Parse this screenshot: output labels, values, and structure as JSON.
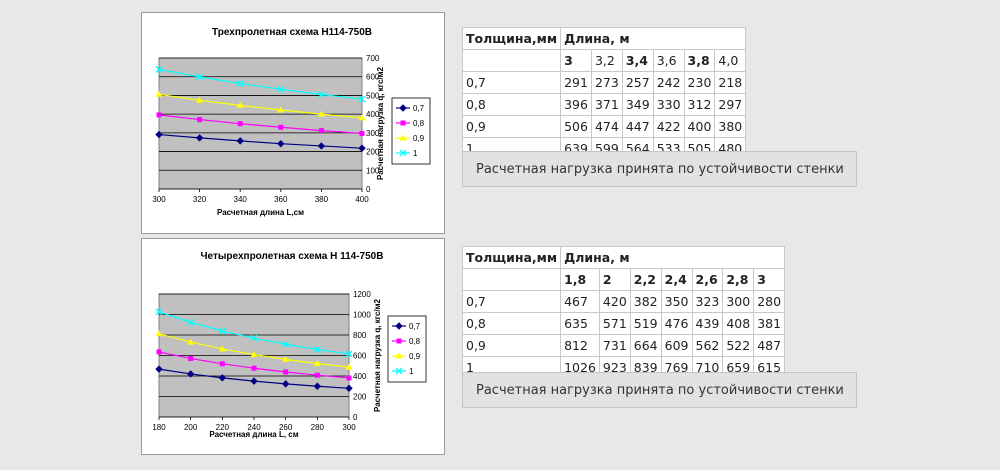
{
  "chart_data": [
    {
      "type": "line",
      "title": "Трехпролетная схема Н114-750В",
      "xlabel": "Расчетная длина L,см",
      "ylabel": "Расчетная нагрузка q, кгс/м2",
      "x": [
        300,
        320,
        340,
        360,
        380,
        400
      ],
      "x_ticks": [
        "300",
        "320",
        "340",
        "360",
        "380",
        "400"
      ],
      "y_ticks": [
        "0",
        "100",
        "200",
        "300",
        "400",
        "500",
        "600",
        "700"
      ],
      "xlim": [
        300,
        400
      ],
      "ylim": [
        0,
        700
      ],
      "y_axis_side": "right",
      "grid": true,
      "legend_position": "right",
      "series": [
        {
          "name": "0,7",
          "values": [
            291,
            273,
            257,
            242,
            230,
            218
          ],
          "color": "#000080",
          "marker": "diamond"
        },
        {
          "name": "0,8",
          "values": [
            396,
            371,
            349,
            330,
            312,
            297
          ],
          "color": "#ff00ff",
          "marker": "square"
        },
        {
          "name": "0,9",
          "values": [
            506,
            474,
            447,
            422,
            400,
            380
          ],
          "color": "#ffff00",
          "marker": "triangle"
        },
        {
          "name": "1",
          "values": [
            639,
            599,
            564,
            533,
            505,
            480
          ],
          "color": "#00ffff",
          "marker": "x"
        }
      ]
    },
    {
      "type": "line",
      "title": "Четырехпролетная схема Н 114-750В",
      "xlabel": "Расчетная длина L, см",
      "ylabel": "Расчетная нагрузка q, кгс/м2",
      "x": [
        180,
        200,
        220,
        240,
        260,
        280,
        300
      ],
      "x_ticks": [
        "180",
        "200",
        "220",
        "240",
        "260",
        "280",
        "300"
      ],
      "y_ticks": [
        "0",
        "200",
        "400",
        "600",
        "800",
        "1000",
        "1200"
      ],
      "xlim": [
        180,
        300
      ],
      "ylim": [
        0,
        1200
      ],
      "y_axis_side": "right",
      "grid": true,
      "legend_position": "right",
      "series": [
        {
          "name": "0,7",
          "values": [
            467,
            420,
            382,
            350,
            323,
            300,
            280
          ],
          "color": "#000080",
          "marker": "diamond"
        },
        {
          "name": "0,8",
          "values": [
            635,
            571,
            519,
            476,
            439,
            408,
            381
          ],
          "color": "#ff00ff",
          "marker": "square"
        },
        {
          "name": "0,9",
          "values": [
            812,
            731,
            664,
            609,
            562,
            522,
            487
          ],
          "color": "#ffff00",
          "marker": "triangle"
        },
        {
          "name": "1",
          "values": [
            1026,
            923,
            839,
            769,
            710,
            659,
            615
          ],
          "color": "#00ffff",
          "marker": "x"
        }
      ]
    }
  ],
  "tables": [
    {
      "header_thickness": "Толщина,мм",
      "header_length": "Длина, м",
      "lengths": [
        "3",
        "3,2",
        "3,4",
        "3,6",
        "3,8",
        "4,0"
      ],
      "rows": [
        {
          "t": "0,7",
          "v": [
            "291",
            "273",
            "257",
            "242",
            "230",
            "218"
          ]
        },
        {
          "t": "0,8",
          "v": [
            "396",
            "371",
            "349",
            "330",
            "312",
            "297"
          ]
        },
        {
          "t": "0,9",
          "v": [
            "506",
            "474",
            "447",
            "422",
            "400",
            "380"
          ]
        },
        {
          "t": "1",
          "v": [
            "639",
            "599",
            "564",
            "533",
            "505",
            "480"
          ]
        }
      ]
    },
    {
      "header_thickness": "Толщина,мм",
      "header_length": "Длина, м",
      "lengths": [
        "1,8",
        "2",
        "2,2",
        "2,4",
        "2,6",
        "2,8",
        "3"
      ],
      "rows": [
        {
          "t": "0,7",
          "v": [
            "467",
            "420",
            "382",
            "350",
            "323",
            "300",
            "280"
          ]
        },
        {
          "t": "0,8",
          "v": [
            "635",
            "571",
            "519",
            "476",
            "439",
            "408",
            "381"
          ]
        },
        {
          "t": "0,9",
          "v": [
            "812",
            "731",
            "664",
            "609",
            "562",
            "522",
            "487"
          ]
        },
        {
          "t": "1",
          "v": [
            "1026",
            "923",
            "839",
            "769",
            "710",
            "659",
            "615"
          ]
        }
      ]
    }
  ],
  "notes": [
    "Расчетная нагрузка принята по устойчивости стенки",
    "Расчетная нагрузка принята по устойчивости стенки"
  ]
}
